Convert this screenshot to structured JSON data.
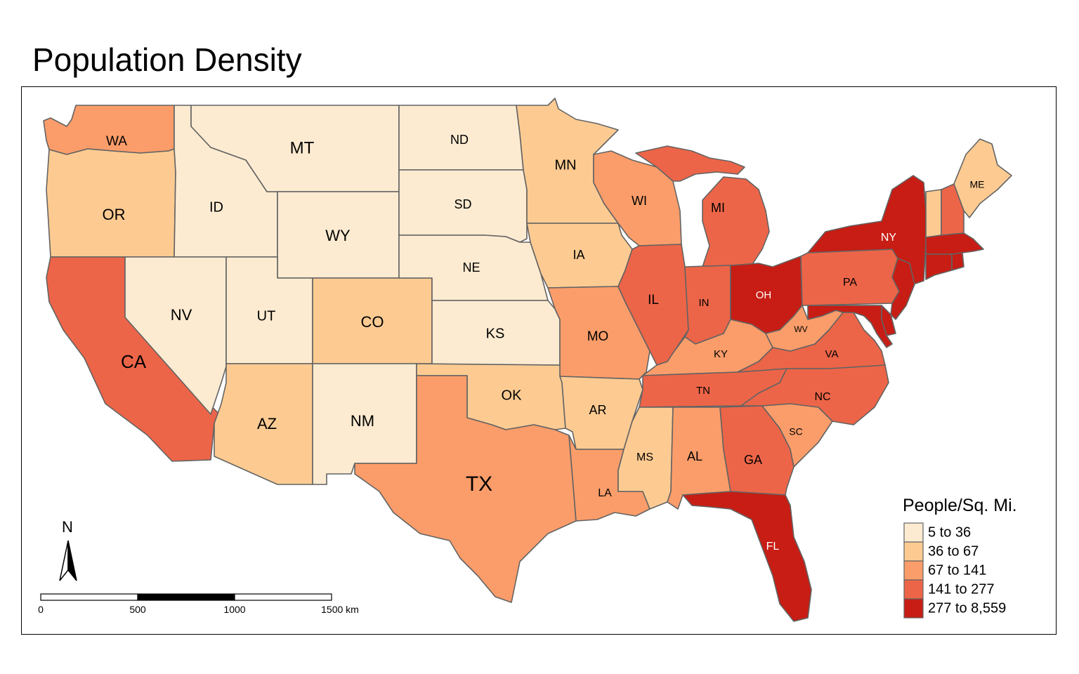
{
  "title": "Population Density",
  "colors": {
    "class1": "#fdebd1",
    "class2": "#fdcb92",
    "class3": "#fb9d6a",
    "class4": "#ed6548",
    "class5": "#c71d14"
  },
  "legend": {
    "title": "People/Sq. Mi.",
    "items": [
      {
        "label": "5 to 36",
        "color": "#fdebd1"
      },
      {
        "label": "36 to 67",
        "color": "#fdcb92"
      },
      {
        "label": "67 to 141",
        "color": "#fb9d6a"
      },
      {
        "label": "141 to 277",
        "color": "#ed6548"
      },
      {
        "label": "277 to 8,559",
        "color": "#c71d14"
      }
    ]
  },
  "north_arrow": {
    "label": "N"
  },
  "scale_bar": {
    "labels": [
      "0",
      "500",
      "1000",
      "1500 km"
    ]
  },
  "states": {
    "WA": {
      "label": "WA",
      "class": 3
    },
    "OR": {
      "label": "OR",
      "class": 2
    },
    "CA": {
      "label": "CA",
      "class": 4
    },
    "ID": {
      "label": "ID",
      "class": 1
    },
    "NV": {
      "label": "NV",
      "class": 1
    },
    "MT": {
      "label": "MT",
      "class": 1
    },
    "WY": {
      "label": "WY",
      "class": 1
    },
    "UT": {
      "label": "UT",
      "class": 1
    },
    "AZ": {
      "label": "AZ",
      "class": 2
    },
    "CO": {
      "label": "CO",
      "class": 2
    },
    "NM": {
      "label": "NM",
      "class": 1
    },
    "ND": {
      "label": "ND",
      "class": 1
    },
    "SD": {
      "label": "SD",
      "class": 1
    },
    "NE": {
      "label": "NE",
      "class": 1
    },
    "KS": {
      "label": "KS",
      "class": 1
    },
    "OK": {
      "label": "OK",
      "class": 2
    },
    "TX": {
      "label": "TX",
      "class": 3
    },
    "MN": {
      "label": "MN",
      "class": 2
    },
    "IA": {
      "label": "IA",
      "class": 2
    },
    "MO": {
      "label": "MO",
      "class": 3
    },
    "AR": {
      "label": "AR",
      "class": 2
    },
    "LA": {
      "label": "LA",
      "class": 3
    },
    "WI": {
      "label": "WI",
      "class": 3
    },
    "IL": {
      "label": "IL",
      "class": 4
    },
    "MI": {
      "label": "MI",
      "class": 4
    },
    "IN": {
      "label": "IN",
      "class": 4
    },
    "OH": {
      "label": "OH",
      "class": 5
    },
    "KY": {
      "label": "KY",
      "class": 3
    },
    "TN": {
      "label": "TN",
      "class": 4
    },
    "MS": {
      "label": "MS",
      "class": 2
    },
    "AL": {
      "label": "AL",
      "class": 3
    },
    "GA": {
      "label": "GA",
      "class": 4
    },
    "FL": {
      "label": "FL",
      "class": 5
    },
    "SC": {
      "label": "SC",
      "class": 3
    },
    "NC": {
      "label": "NC",
      "class": 4
    },
    "VA": {
      "label": "VA",
      "class": 4
    },
    "WV": {
      "label": "WV",
      "class": 3
    },
    "PA": {
      "label": "PA",
      "class": 4
    },
    "NY": {
      "label": "NY",
      "class": 5
    },
    "ME": {
      "label": "ME",
      "class": 2
    },
    "NH": {
      "label": "",
      "class": 4
    },
    "VT": {
      "label": "",
      "class": 2
    },
    "MA": {
      "label": "",
      "class": 5
    },
    "CT": {
      "label": "",
      "class": 5
    },
    "RI": {
      "label": "",
      "class": 5
    },
    "NJ": {
      "label": "",
      "class": 5
    },
    "DE": {
      "label": "",
      "class": 5
    },
    "MD": {
      "label": "",
      "class": 5
    }
  }
}
